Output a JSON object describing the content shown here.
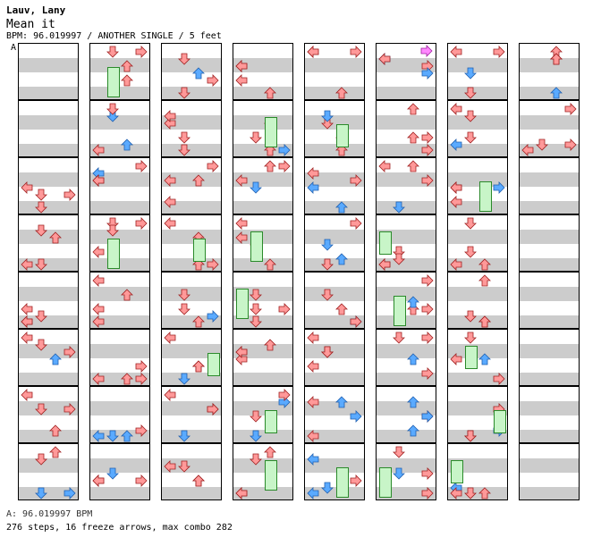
{
  "header": {
    "artist": "Lauv, Lany",
    "title": "Mean it",
    "info": "BPM: 96.019997 / ANOTHER SINGLE / 5 feet",
    "marker": "A"
  },
  "footer": {
    "bpm_line": "A: 96.019997 BPM",
    "stats_line": "276 steps, 16 freeze arrows, max combo 282"
  },
  "colors": {
    "red_arrow": "#ff9999",
    "blue_arrow": "#5aaaff",
    "pink_arrow": "#ff88ff",
    "freeze": "#c8f5c8",
    "stripe": "#cccccc"
  },
  "chart": {
    "columns": 8,
    "rows": 8,
    "lanes": [
      "left",
      "down",
      "up",
      "right"
    ]
  }
}
